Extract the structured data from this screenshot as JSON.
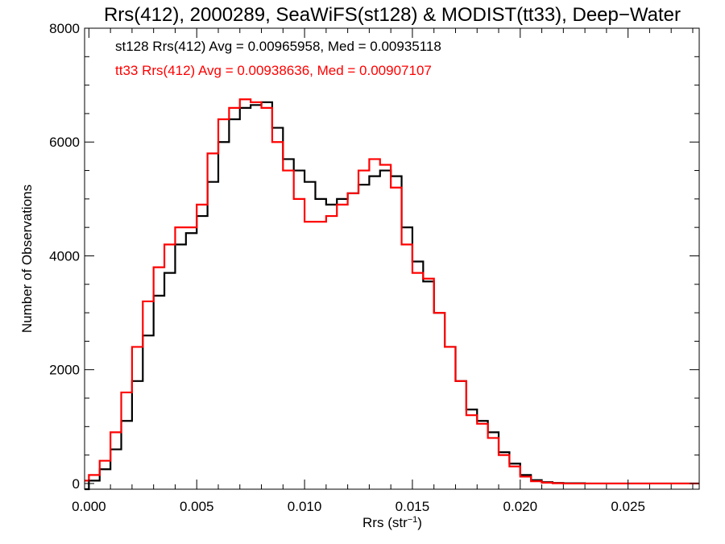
{
  "chart_data": {
    "type": "line",
    "style": "step-histogram",
    "title": "Rrs(412), 2000289, SeaWiFS(st128) & MODIST(tt33), Deep−Water",
    "xlabel": "Rrs (str",
    "xlabel_exponent": "−1",
    "xlabel_close": ")",
    "ylabel": "Number of Observations",
    "xlim": [
      -0.0002,
      0.0283
    ],
    "ylim": [
      -100,
      8000
    ],
    "xticks": [
      0.0,
      0.005,
      0.01,
      0.015,
      0.02,
      0.025
    ],
    "xtick_labels": [
      "0.000",
      "0.005",
      "0.010",
      "0.015",
      "0.020",
      "0.025"
    ],
    "yticks": [
      0,
      2000,
      4000,
      6000,
      8000
    ],
    "ytick_labels": [
      "0",
      "2000",
      "4000",
      "6000",
      "8000"
    ],
    "grid": false,
    "annotations": [
      {
        "text": "st128 Rrs(412) Avg = 0.00965958, Med = 0.00935118",
        "color": "#000000"
      },
      {
        "text": "tt33 Rrs(412) Avg = 0.00938636, Med = 0.00907107",
        "color": "#ff0000"
      }
    ],
    "series": [
      {
        "color": "#000000",
        "x": [
          -0.0002,
          0.0,
          0.0005,
          0.001,
          0.0015,
          0.002,
          0.0025,
          0.003,
          0.0035,
          0.004,
          0.0045,
          0.005,
          0.0055,
          0.006,
          0.0065,
          0.007,
          0.0075,
          0.008,
          0.0085,
          0.009,
          0.0095,
          0.01,
          0.0105,
          0.011,
          0.0115,
          0.012,
          0.0125,
          0.013,
          0.0135,
          0.014,
          0.0145,
          0.015,
          0.0155,
          0.016,
          0.0165,
          0.017,
          0.0175,
          0.018,
          0.0185,
          0.019,
          0.0195,
          0.02,
          0.0205,
          0.021,
          0.0215,
          0.022,
          0.023,
          0.024,
          0.025,
          0.0283
        ],
        "y": [
          -100,
          50,
          250,
          600,
          1100,
          1800,
          2600,
          3300,
          3700,
          4200,
          4400,
          4700,
          5300,
          6000,
          6400,
          6600,
          6650,
          6700,
          6250,
          5700,
          5500,
          5300,
          5000,
          4900,
          5000,
          5100,
          5250,
          5400,
          5500,
          5400,
          4500,
          3900,
          3550,
          3000,
          2400,
          1800,
          1300,
          1100,
          900,
          550,
          350,
          150,
          60,
          25,
          10,
          5,
          0,
          0,
          0,
          0
        ]
      },
      {
        "color": "#ff0000",
        "x": [
          -0.0002,
          0.0,
          0.0005,
          0.001,
          0.0015,
          0.002,
          0.0025,
          0.003,
          0.0035,
          0.004,
          0.0045,
          0.005,
          0.0055,
          0.006,
          0.0065,
          0.007,
          0.0075,
          0.008,
          0.0085,
          0.009,
          0.0095,
          0.01,
          0.0105,
          0.011,
          0.0115,
          0.012,
          0.0125,
          0.013,
          0.0135,
          0.014,
          0.0145,
          0.015,
          0.0155,
          0.016,
          0.0165,
          0.017,
          0.0175,
          0.018,
          0.0185,
          0.019,
          0.0195,
          0.02,
          0.0205,
          0.021,
          0.0215,
          0.022,
          0.023,
          0.024,
          0.025,
          0.0283
        ],
        "y": [
          50,
          150,
          400,
          900,
          1600,
          2400,
          3200,
          3800,
          4200,
          4500,
          4500,
          4900,
          5800,
          6400,
          6600,
          6750,
          6700,
          6600,
          6000,
          5500,
          5000,
          4600,
          4600,
          4700,
          4900,
          5100,
          5500,
          5700,
          5600,
          5200,
          4200,
          3700,
          3600,
          3000,
          2400,
          1800,
          1200,
          1050,
          800,
          500,
          300,
          120,
          40,
          15,
          5,
          0,
          0,
          0,
          0,
          0
        ]
      }
    ]
  }
}
